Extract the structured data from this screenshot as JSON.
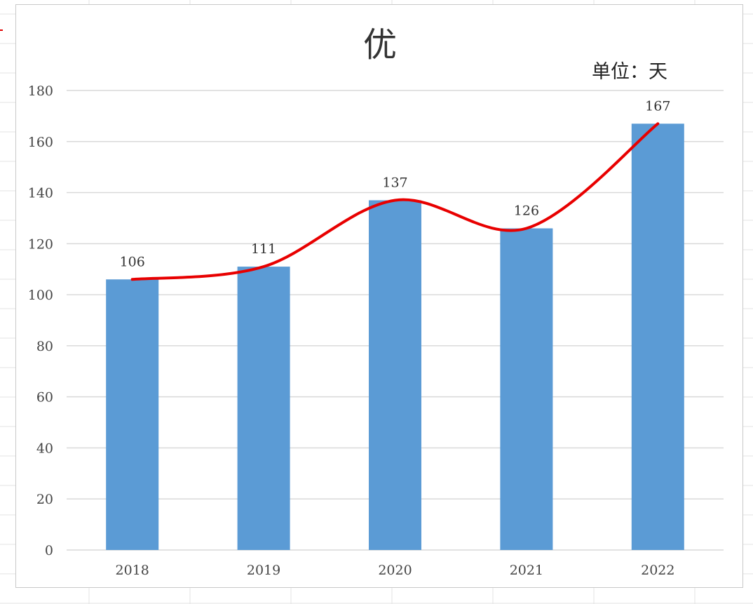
{
  "chart_data": {
    "type": "bar",
    "title": "优",
    "unit_label": "单位：天",
    "categories": [
      "2018",
      "2019",
      "2020",
      "2021",
      "2022"
    ],
    "values": [
      106,
      111,
      137,
      126,
      167
    ],
    "data_labels": [
      "106",
      "111",
      "137",
      "126",
      "167"
    ],
    "ylim": [
      0,
      180
    ],
    "yticks": [
      "0",
      "20",
      "40",
      "60",
      "80",
      "100",
      "120",
      "140",
      "160",
      "180"
    ],
    "grid": true,
    "legend": "none",
    "overlay": {
      "type": "line",
      "style": "smooth freehand",
      "values": [
        106,
        111,
        137,
        126,
        167
      ]
    },
    "colors": {
      "bar": "#5b9bd5",
      "trend_line": "#e80000",
      "gridline": "#d9d9d9"
    }
  }
}
